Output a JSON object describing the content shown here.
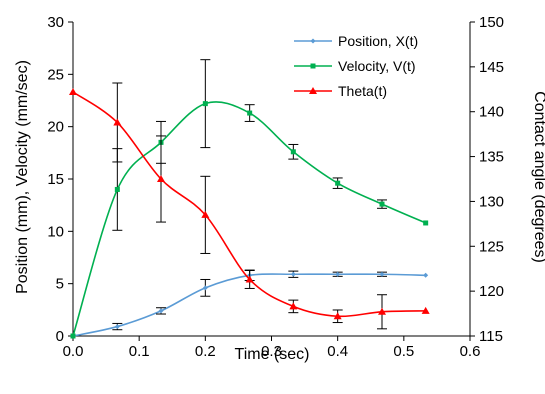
{
  "chart_data": {
    "type": "line",
    "xlabel": "Time (sec)",
    "ylabel_left": "Position (mm), Velocity (mm/sec)",
    "ylabel_right": "Contact angle (degrees)",
    "xlim": [
      0,
      0.6
    ],
    "ylim_left": [
      0,
      30
    ],
    "ylim_right": [
      115,
      150
    ],
    "x_ticks": [
      "0.0",
      "0.1",
      "0.2",
      "0.3",
      "0.4",
      "0.5",
      "0.6"
    ],
    "y_left_ticks": [
      "0",
      "5",
      "10",
      "15",
      "20",
      "25",
      "30"
    ],
    "y_right_ticks": [
      "115",
      "120",
      "125",
      "130",
      "135",
      "140",
      "145",
      "150"
    ],
    "grid": false,
    "legend_position": "top-right",
    "series": [
      {
        "name": "Position, X(t)",
        "axis": "left",
        "color": "#5b9bd5",
        "marker": "diamond",
        "x": [
          0,
          0.067,
          0.133,
          0.2,
          0.267,
          0.333,
          0.4,
          0.467,
          0.533
        ],
        "y": [
          0,
          0.9,
          2.4,
          4.6,
          5.8,
          5.9,
          5.9,
          5.9,
          5.8
        ],
        "err": [
          0,
          0.3,
          0.3,
          0.8,
          0.5,
          0.3,
          0.2,
          0.2,
          0
        ]
      },
      {
        "name": "Velocity, V(t)",
        "axis": "left",
        "color": "#00b050",
        "marker": "square",
        "x": [
          0,
          0.067,
          0.133,
          0.2,
          0.267,
          0.333,
          0.4,
          0.467,
          0.533
        ],
        "y": [
          0,
          14,
          18.5,
          22.2,
          21.3,
          17.6,
          14.6,
          12.6,
          10.8
        ],
        "err": [
          0,
          3.9,
          2.0,
          4.2,
          0.8,
          0.7,
          0.5,
          0.4,
          0
        ]
      },
      {
        "name": "Theta(t)",
        "axis": "right",
        "color": "#ff0000",
        "marker": "triangle",
        "x": [
          0,
          0.067,
          0.133,
          0.2,
          0.267,
          0.333,
          0.4,
          0.467,
          0.533
        ],
        "y": [
          142.2,
          138.8,
          132.5,
          128.5,
          121.3,
          118.3,
          117.2,
          117.7,
          117.8
        ],
        "err": [
          0,
          4.4,
          4.8,
          4.3,
          1.0,
          0.7,
          0.7,
          1.9,
          0
        ]
      }
    ]
  }
}
